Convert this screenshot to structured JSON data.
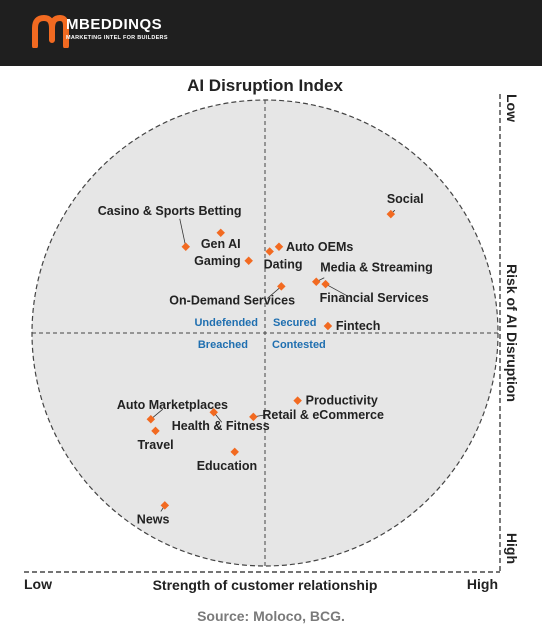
{
  "header": {
    "brand_name": "MBEDDINQS",
    "brand_tagline": "MARKETING INTEL FOR BUILDERS",
    "brand_color": "#f26a21"
  },
  "source_text": "Source: Moloco, BCG.",
  "chart_data": {
    "type": "scatter",
    "title": "AI Disruption Index",
    "xlabel": "Strength of customer relationship",
    "ylabel": "Risk of AI Disruption",
    "x_low_label": "Low",
    "x_high_label": "High",
    "y_low_label": "Low",
    "y_high_label": "High",
    "xlim": [
      -1,
      1
    ],
    "ylim": [
      -1,
      1
    ],
    "quadrant_labels": {
      "top_left": "Undefended",
      "top_right": "Secured",
      "bottom_left": "Breached",
      "bottom_right": "Contested"
    },
    "marker_color": "#f26a21",
    "points": [
      {
        "label": "Social",
        "x": 0.54,
        "y": 0.51
      },
      {
        "label": "Casino & Sports Betting",
        "x": -0.34,
        "y": 0.37
      },
      {
        "label": "Gen AI",
        "x": -0.19,
        "y": 0.43
      },
      {
        "label": "Auto OEMs",
        "x": 0.06,
        "y": 0.37
      },
      {
        "label": "Dating",
        "x": 0.02,
        "y": 0.35
      },
      {
        "label": "Gaming",
        "x": -0.07,
        "y": 0.31
      },
      {
        "label": "Media & Streaming",
        "x": 0.22,
        "y": 0.22
      },
      {
        "label": "Financial Services",
        "x": 0.26,
        "y": 0.21
      },
      {
        "label": "On-Demand Services",
        "x": 0.07,
        "y": 0.2
      },
      {
        "label": "Fintech",
        "x": 0.27,
        "y": 0.03
      },
      {
        "label": "Productivity",
        "x": 0.14,
        "y": -0.29
      },
      {
        "label": "Auto Marketplaces",
        "x": -0.49,
        "y": -0.37
      },
      {
        "label": "Health & Fitness",
        "x": -0.22,
        "y": -0.34
      },
      {
        "label": "Retail & eCommerce",
        "x": -0.05,
        "y": -0.36
      },
      {
        "label": "Travel",
        "x": -0.47,
        "y": -0.42
      },
      {
        "label": "Education",
        "x": -0.13,
        "y": -0.51
      },
      {
        "label": "News",
        "x": -0.43,
        "y": -0.74
      }
    ]
  }
}
